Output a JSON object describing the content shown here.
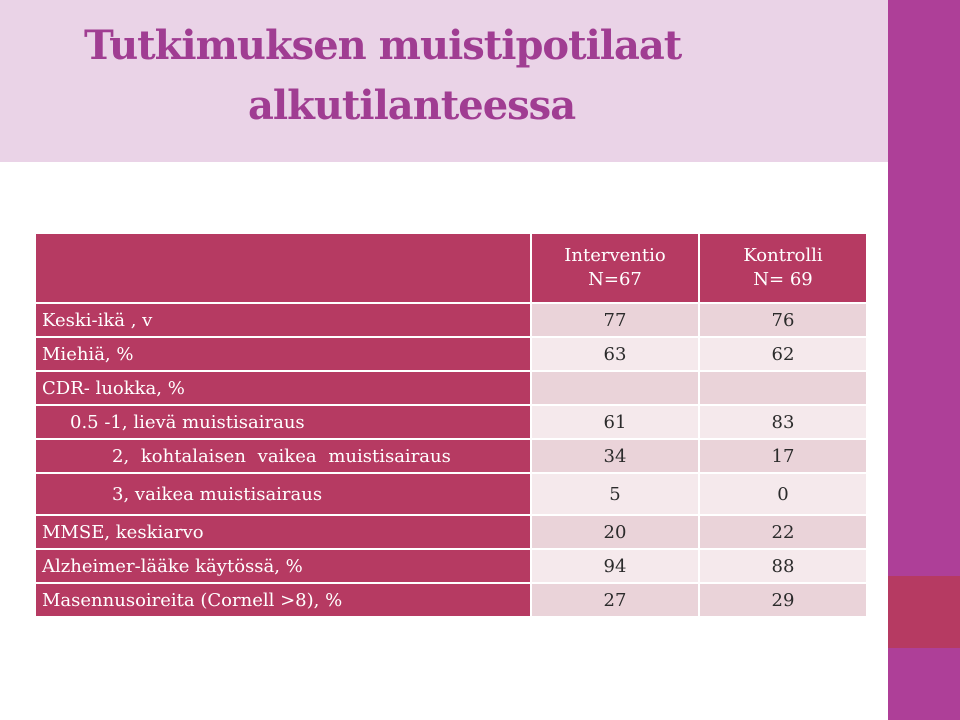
{
  "slide": {
    "title_line1": "Tutkimuksen muistipotilaat",
    "title_line2": "alkutilanteessa",
    "colors": {
      "title": "#a03d92",
      "title_band": "#ead3e7",
      "accent_strip": "#ae3f98",
      "table_header": "#b63a62",
      "row_odd": "#ead3d9",
      "row_even": "#f5e9ec"
    }
  },
  "table": {
    "headers": [
      {
        "line1": "",
        "line2": ""
      },
      {
        "line1": "Interventio",
        "line2": "N=67"
      },
      {
        "line1": "Kontrolli",
        "line2": "N= 69"
      }
    ],
    "rows": [
      {
        "label": "Keski-ikä , v",
        "intervention": "77",
        "control": "76"
      },
      {
        "label": "Miehiä, %",
        "intervention": "63",
        "control": "62"
      },
      {
        "label": "CDR- luokka, %",
        "intervention": "",
        "control": ""
      },
      {
        "label": "0.5 -1, lievä muistisairaus",
        "intervention": "61",
        "control": "83"
      },
      {
        "label": "2,  kohtalaisen vaikea  muistisairaus",
        "intervention": "34",
        "control": "17"
      },
      {
        "label": "3,  vaikea muistisairaus",
        "intervention": "5",
        "control": "0"
      },
      {
        "label": "MMSE, keskiarvo",
        "intervention": "20",
        "control": "22"
      },
      {
        "label": "Alzheimer-lääke käytössä, %",
        "intervention": "94",
        "control": "88"
      },
      {
        "label": "Masennusoireita  (Cornell >8), %",
        "intervention": "27",
        "control": "29"
      }
    ]
  }
}
